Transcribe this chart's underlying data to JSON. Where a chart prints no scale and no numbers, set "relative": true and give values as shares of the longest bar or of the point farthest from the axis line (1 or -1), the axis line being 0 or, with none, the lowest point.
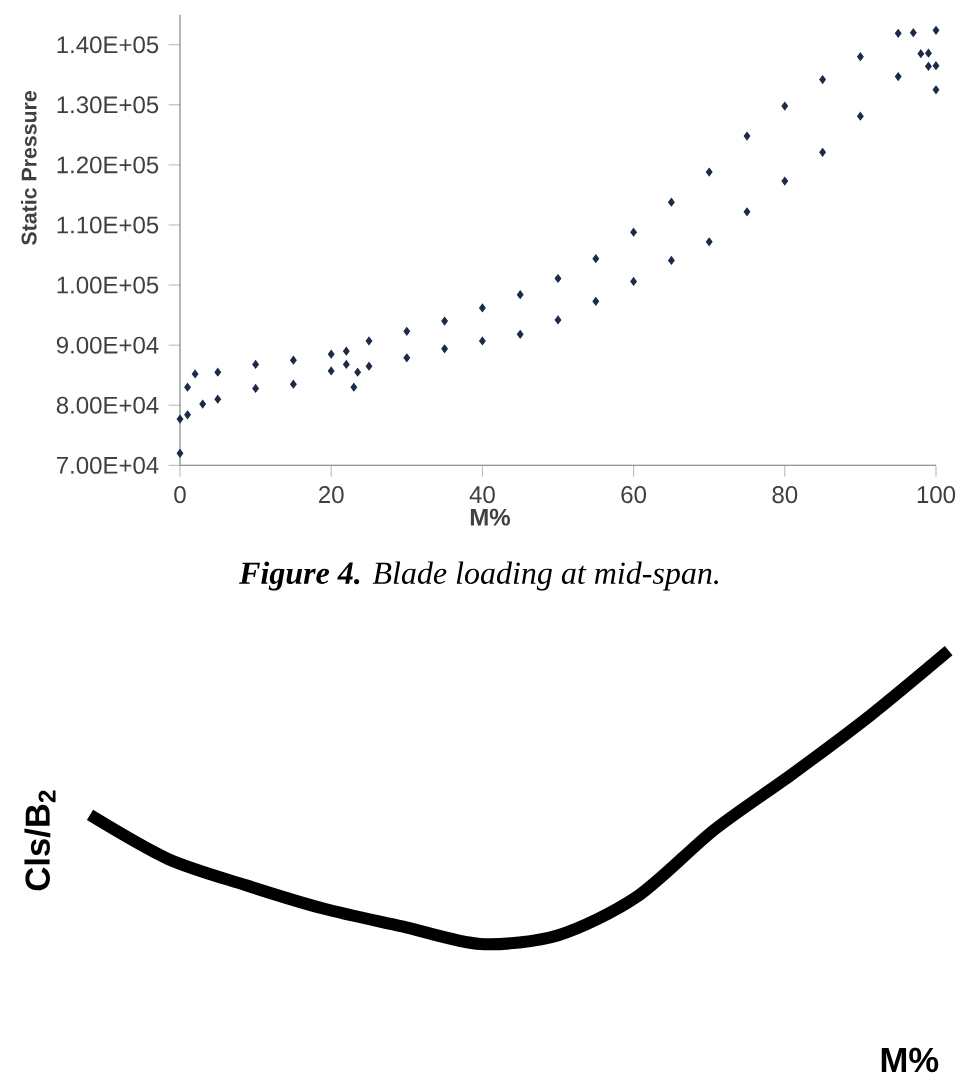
{
  "chart_data": [
    {
      "type": "scatter",
      "xlabel": "M%",
      "ylabel": "Static Pressure",
      "annotations": [
        "**Figure 4.** Blade loading at mid-span."
      ],
      "marker": "diamond",
      "xlim": [
        0,
        100
      ],
      "ylim": [
        70000,
        145000
      ],
      "xticks": [
        0,
        20,
        40,
        60,
        80,
        100
      ],
      "yticks": [
        {
          "value": 70000,
          "label": "7.00E+04"
        },
        {
          "value": 80000,
          "label": "8.00E+04"
        },
        {
          "value": 90000,
          "label": "9.00E+04"
        },
        {
          "value": 100000,
          "label": "1.00E+05"
        },
        {
          "value": 110000,
          "label": "1.10E+05"
        },
        {
          "value": 120000,
          "label": "1.20E+05"
        },
        {
          "value": 130000,
          "label": "1.30E+05"
        },
        {
          "value": 140000,
          "label": "1.40E+05"
        }
      ],
      "series": [
        {
          "color": "#1b2a48",
          "x": [
            0,
            1,
            2,
            5,
            10,
            15,
            20,
            22,
            25,
            30,
            35,
            40,
            45,
            50,
            55,
            60,
            65,
            70,
            75,
            80,
            85,
            90,
            95,
            97,
            99,
            100
          ],
          "values": [
            77700,
            83000,
            85200,
            85500,
            86800,
            87500,
            88500,
            89000,
            90700,
            92300,
            94000,
            96200,
            98400,
            101100,
            104400,
            108800,
            113800,
            118800,
            124800,
            129800,
            134200,
            138000,
            141900,
            142000,
            138600,
            142400
          ]
        },
        {
          "color": "#1b2a48",
          "x": [
            0,
            1,
            3,
            5,
            10,
            15,
            20,
            22,
            23,
            23.5,
            25,
            30,
            35,
            40,
            45,
            50,
            55,
            60,
            65,
            70,
            75,
            80,
            85,
            90,
            95,
            98,
            99,
            100,
            100
          ],
          "values": [
            72000,
            78400,
            80200,
            81000,
            82800,
            83500,
            85700,
            86800,
            83000,
            85500,
            86500,
            87900,
            89400,
            90700,
            91800,
            94200,
            97300,
            100600,
            104100,
            107200,
            112200,
            117300,
            122100,
            128100,
            134700,
            138500,
            136400,
            132500,
            136500
          ]
        }
      ]
    },
    {
      "type": "line",
      "relative": true,
      "xlabel": "M%",
      "ylabel": "Cls/B$_{2}$",
      "categories": [
        null,
        null,
        null,
        null,
        null,
        null,
        null,
        null,
        null,
        null,
        null,
        null
      ],
      "series": [
        {
          "color": "#000000",
          "values": [
            0.44,
            0.29,
            0.2,
            0.12,
            0.06,
            0.0,
            0.03,
            0.16,
            0.39,
            0.58,
            0.78,
            1.0
          ]
        }
      ]
    }
  ]
}
